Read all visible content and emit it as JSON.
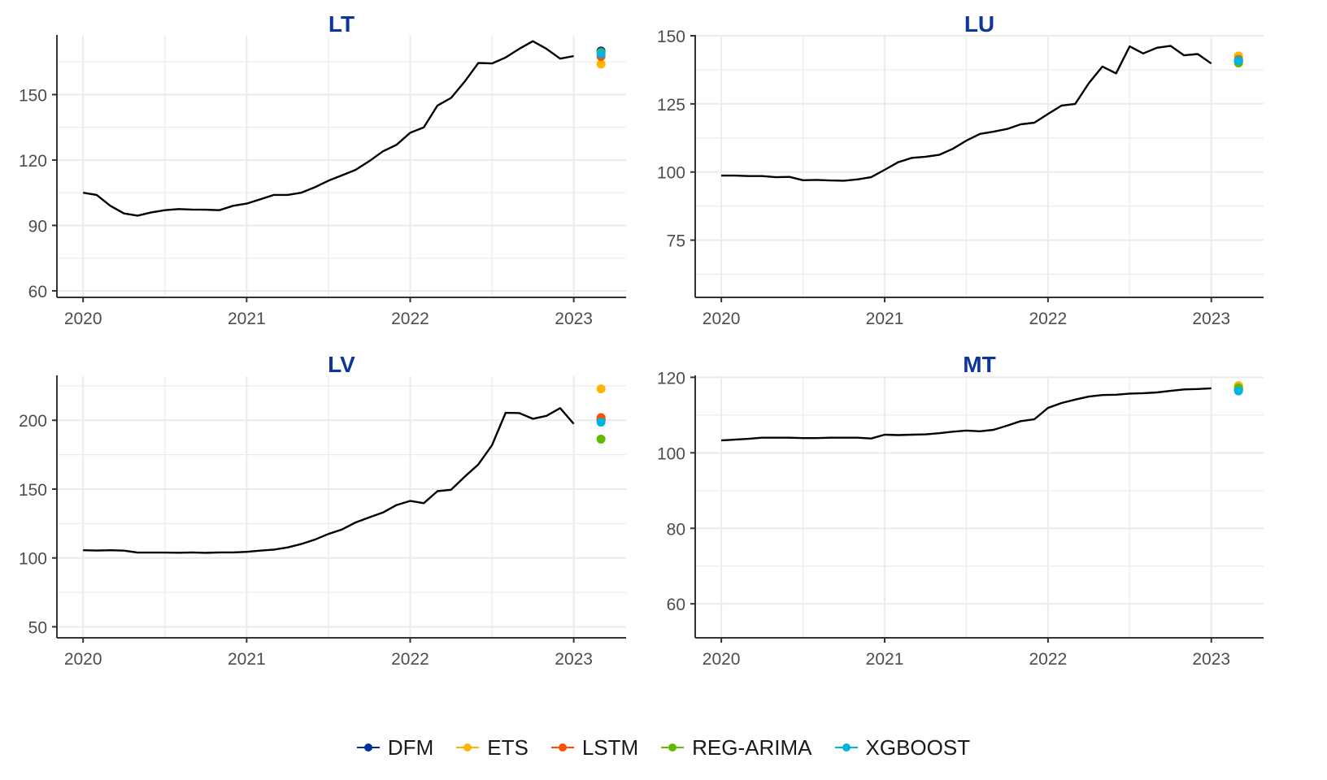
{
  "chart_data": [
    {
      "type": "line",
      "title": "LT",
      "xlabel": "",
      "ylabel": "",
      "x_ticks": [
        "2020",
        "2021",
        "2022",
        "2023"
      ],
      "y_ticks": [
        60,
        90,
        120,
        150
      ],
      "ylim": [
        57,
        177
      ],
      "xlim": [
        2019.84,
        2023.32
      ],
      "grid": true,
      "series": [
        {
          "x": [
            "2020-01",
            "2020-02",
            "2020-03",
            "2020-04",
            "2020-05",
            "2020-06",
            "2020-07",
            "2020-08",
            "2020-09",
            "2020-10",
            "2020-11",
            "2020-12",
            "2021-01",
            "2021-02",
            "2021-03",
            "2021-04",
            "2021-05",
            "2021-06",
            "2021-07",
            "2021-08",
            "2021-09",
            "2021-10",
            "2021-11",
            "2021-12",
            "2022-01",
            "2022-02",
            "2022-03",
            "2022-04",
            "2022-05",
            "2022-06",
            "2022-07",
            "2022-08",
            "2022-09",
            "2022-10",
            "2022-11",
            "2022-12",
            "2023-01"
          ],
          "values": [
            105,
            104,
            99,
            95.5,
            94.5,
            96,
            97,
            97.5,
            97.3,
            97.2,
            97,
            99,
            100,
            102,
            104,
            104,
            105,
            107.5,
            110.5,
            113,
            115.5,
            119.5,
            124,
            127,
            132.5,
            135,
            145,
            148.5,
            156,
            164.5,
            164.3,
            167,
            171,
            174.5,
            171,
            166.5,
            167.7
          ]
        }
      ],
      "forecasts": [
        {
          "model": "DFM",
          "x": "2023-03",
          "value": 170
        },
        {
          "model": "ETS",
          "x": "2023-03",
          "value": 164
        },
        {
          "model": "LSTM",
          "x": "2023-03",
          "value": 167.5
        },
        {
          "model": "REG-ARIMA",
          "x": "2023-03",
          "value": 169.3
        },
        {
          "model": "XGBOOST",
          "x": "2023-03",
          "value": 168.7
        }
      ]
    },
    {
      "type": "line",
      "title": "LU",
      "xlabel": "",
      "ylabel": "",
      "x_ticks": [
        "2020",
        "2021",
        "2022",
        "2023"
      ],
      "y_ticks": [
        75,
        100,
        125,
        150
      ],
      "ylim": [
        54,
        150
      ],
      "xlim": [
        2019.84,
        2023.32
      ],
      "grid": true,
      "series": [
        {
          "x": [
            "2020-01",
            "2020-02",
            "2020-03",
            "2020-04",
            "2020-05",
            "2020-06",
            "2020-07",
            "2020-08",
            "2020-09",
            "2020-10",
            "2020-11",
            "2020-12",
            "2021-01",
            "2021-02",
            "2021-03",
            "2021-04",
            "2021-05",
            "2021-06",
            "2021-07",
            "2021-08",
            "2021-09",
            "2021-10",
            "2021-11",
            "2021-12",
            "2022-01",
            "2022-02",
            "2022-03",
            "2022-04",
            "2022-05",
            "2022-06",
            "2022-07",
            "2022-08",
            "2022-09",
            "2022-10",
            "2022-11",
            "2022-12",
            "2023-01"
          ],
          "values": [
            98.7,
            98.7,
            98.5,
            98.5,
            98.1,
            98.2,
            97,
            97.1,
            96.9,
            96.8,
            97.3,
            98.1,
            100.8,
            103.6,
            105.2,
            105.6,
            106.3,
            108.5,
            111.5,
            114,
            114.8,
            115.8,
            117.5,
            118.1,
            121.3,
            124.4,
            125,
            132.6,
            138.7,
            136.2,
            146.1,
            143.5,
            145.6,
            146.3,
            142.8,
            143.3,
            139.8
          ]
        }
      ],
      "forecasts": [
        {
          "model": "DFM",
          "x": "2023-03",
          "value": 140.6
        },
        {
          "model": "ETS",
          "x": "2023-03",
          "value": 142.6
        },
        {
          "model": "LSTM",
          "x": "2023-03",
          "value": 141.3
        },
        {
          "model": "REG-ARIMA",
          "x": "2023-03",
          "value": 140
        },
        {
          "model": "XGBOOST",
          "x": "2023-03",
          "value": 140.9
        }
      ]
    },
    {
      "type": "line",
      "title": "LV",
      "xlabel": "",
      "ylabel": "",
      "x_ticks": [
        "2020",
        "2021",
        "2022",
        "2023"
      ],
      "y_ticks": [
        50,
        100,
        150,
        200
      ],
      "ylim": [
        42,
        232
      ],
      "xlim": [
        2019.84,
        2023.32
      ],
      "grid": true,
      "series": [
        {
          "x": [
            "2020-01",
            "2020-02",
            "2020-03",
            "2020-04",
            "2020-05",
            "2020-06",
            "2020-07",
            "2020-08",
            "2020-09",
            "2020-10",
            "2020-11",
            "2020-12",
            "2021-01",
            "2021-02",
            "2021-03",
            "2021-04",
            "2021-05",
            "2021-06",
            "2021-07",
            "2021-08",
            "2021-09",
            "2021-10",
            "2021-11",
            "2021-12",
            "2022-01",
            "2022-02",
            "2022-03",
            "2022-04",
            "2022-05",
            "2022-06",
            "2022-07",
            "2022-08",
            "2022-09",
            "2022-10",
            "2022-11",
            "2022-12",
            "2023-01"
          ],
          "values": [
            105.6,
            105.4,
            105.6,
            105.3,
            103.9,
            103.9,
            103.9,
            103.8,
            104,
            103.7,
            104,
            104,
            104.4,
            105.3,
            106.1,
            107.6,
            110.1,
            113.3,
            117.4,
            120.7,
            125.8,
            129.5,
            133,
            138.4,
            141.4,
            139.8,
            148.5,
            149.5,
            159,
            167.9,
            181.9,
            205.4,
            205.2,
            201.1,
            203.2,
            208.8,
            197.4
          ]
        }
      ],
      "forecasts": [
        {
          "model": "DFM",
          "x": "2023-03",
          "value": 200.4
        },
        {
          "model": "ETS",
          "x": "2023-03",
          "value": 222.8
        },
        {
          "model": "LSTM",
          "x": "2023-03",
          "value": 201.9
        },
        {
          "model": "REG-ARIMA",
          "x": "2023-03",
          "value": 186.3
        },
        {
          "model": "XGBOOST",
          "x": "2023-03",
          "value": 198.6
        }
      ]
    },
    {
      "type": "line",
      "title": "MT",
      "xlabel": "",
      "ylabel": "",
      "x_ticks": [
        "2020",
        "2021",
        "2022",
        "2023"
      ],
      "y_ticks": [
        60,
        80,
        100,
        120
      ],
      "ylim": [
        51,
        120.3
      ],
      "xlim": [
        2019.84,
        2023.32
      ],
      "grid": true,
      "series": [
        {
          "x": [
            "2020-01",
            "2020-02",
            "2020-03",
            "2020-04",
            "2020-05",
            "2020-06",
            "2020-07",
            "2020-08",
            "2020-09",
            "2020-10",
            "2020-11",
            "2020-12",
            "2021-01",
            "2021-02",
            "2021-03",
            "2021-04",
            "2021-05",
            "2021-06",
            "2021-07",
            "2021-08",
            "2021-09",
            "2021-10",
            "2021-11",
            "2021-12",
            "2022-01",
            "2022-02",
            "2022-03",
            "2022-04",
            "2022-05",
            "2022-06",
            "2022-07",
            "2022-08",
            "2022-09",
            "2022-10",
            "2022-11",
            "2022-12",
            "2023-01"
          ],
          "values": [
            103.3,
            103.5,
            103.7,
            104,
            104,
            104,
            103.9,
            103.9,
            104,
            104,
            104,
            103.8,
            104.8,
            104.7,
            104.8,
            104.9,
            105.2,
            105.6,
            105.9,
            105.7,
            106.1,
            107.2,
            108.4,
            108.9,
            111.9,
            113.2,
            114.1,
            114.9,
            115.3,
            115.4,
            115.7,
            115.8,
            116,
            116.4,
            116.8,
            116.9,
            117.1
          ]
        }
      ],
      "forecasts": [
        {
          "model": "DFM",
          "x": "2023-03",
          "value": 116.8
        },
        {
          "model": "ETS",
          "x": "2023-03",
          "value": 117.8
        },
        {
          "model": "LSTM",
          "x": "2023-03",
          "value": 117
        },
        {
          "model": "REG-ARIMA",
          "x": "2023-03",
          "value": 117.2
        },
        {
          "model": "XGBOOST",
          "x": "2023-03",
          "value": 116.4
        }
      ]
    }
  ],
  "legend": {
    "placement": "bottom",
    "items": [
      {
        "label": "DFM",
        "color": "#003399"
      },
      {
        "label": "ETS",
        "color": "#FFB400"
      },
      {
        "label": "LSTM",
        "color": "#FF4F00"
      },
      {
        "label": "REG-ARIMA",
        "color": "#65B800"
      },
      {
        "label": "XGBOOST",
        "color": "#00B4E1"
      }
    ]
  },
  "colors": {
    "title": "#0E3599",
    "series_line": "#000000",
    "grid": "#EBEBEB",
    "axis": "#333333"
  }
}
